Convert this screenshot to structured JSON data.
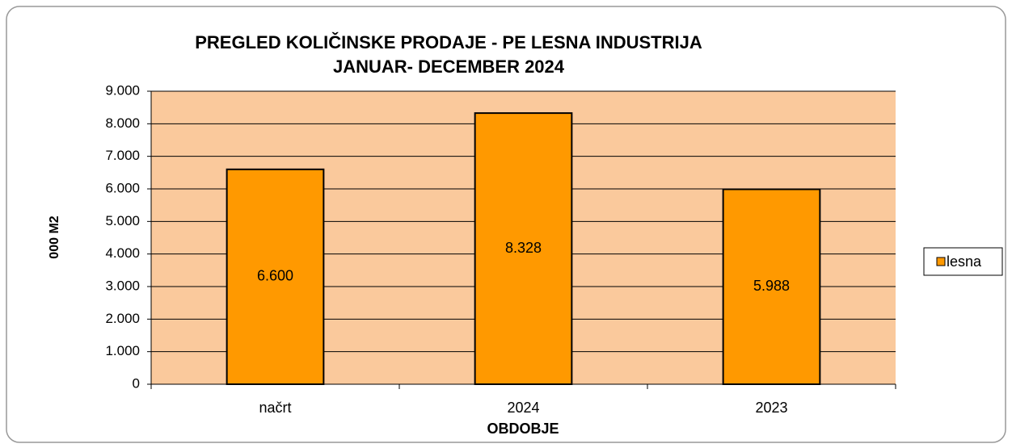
{
  "chart_data": {
    "type": "bar",
    "title": "PREGLED KOLIČINSKE PRODAJE - PE LESNA INDUSTRIJA",
    "subtitle": "JANUAR- DECEMBER 2024",
    "y_label": "000 M2",
    "x_label": "OBDOBJE",
    "categories": [
      "načrt",
      "2024",
      "2023"
    ],
    "series": [
      {
        "name": "lesna",
        "color": "#ff9900",
        "values": [
          6600,
          8328,
          5988
        ],
        "value_labels": [
          "6.600",
          "8.328",
          "5.988"
        ]
      }
    ],
    "ylim": [
      0,
      9000
    ],
    "yticks": [
      0,
      {
        "value": 1000,
        "label": "1.000"
      },
      {
        "value": 2000,
        "label": "2.000"
      },
      {
        "value": 3000,
        "label": "3.000"
      },
      {
        "value": 4000,
        "label": "4.000"
      },
      {
        "value": 5000,
        "label": "5.000"
      },
      {
        "value": 6000,
        "label": "6.000"
      },
      {
        "value": 7000,
        "label": "7.000"
      },
      {
        "value": 8000,
        "label": "8.000"
      },
      {
        "value": 9000,
        "label": "9.000"
      }
    ],
    "grid": true,
    "plot_background": "#fac99c",
    "legend": "right"
  }
}
